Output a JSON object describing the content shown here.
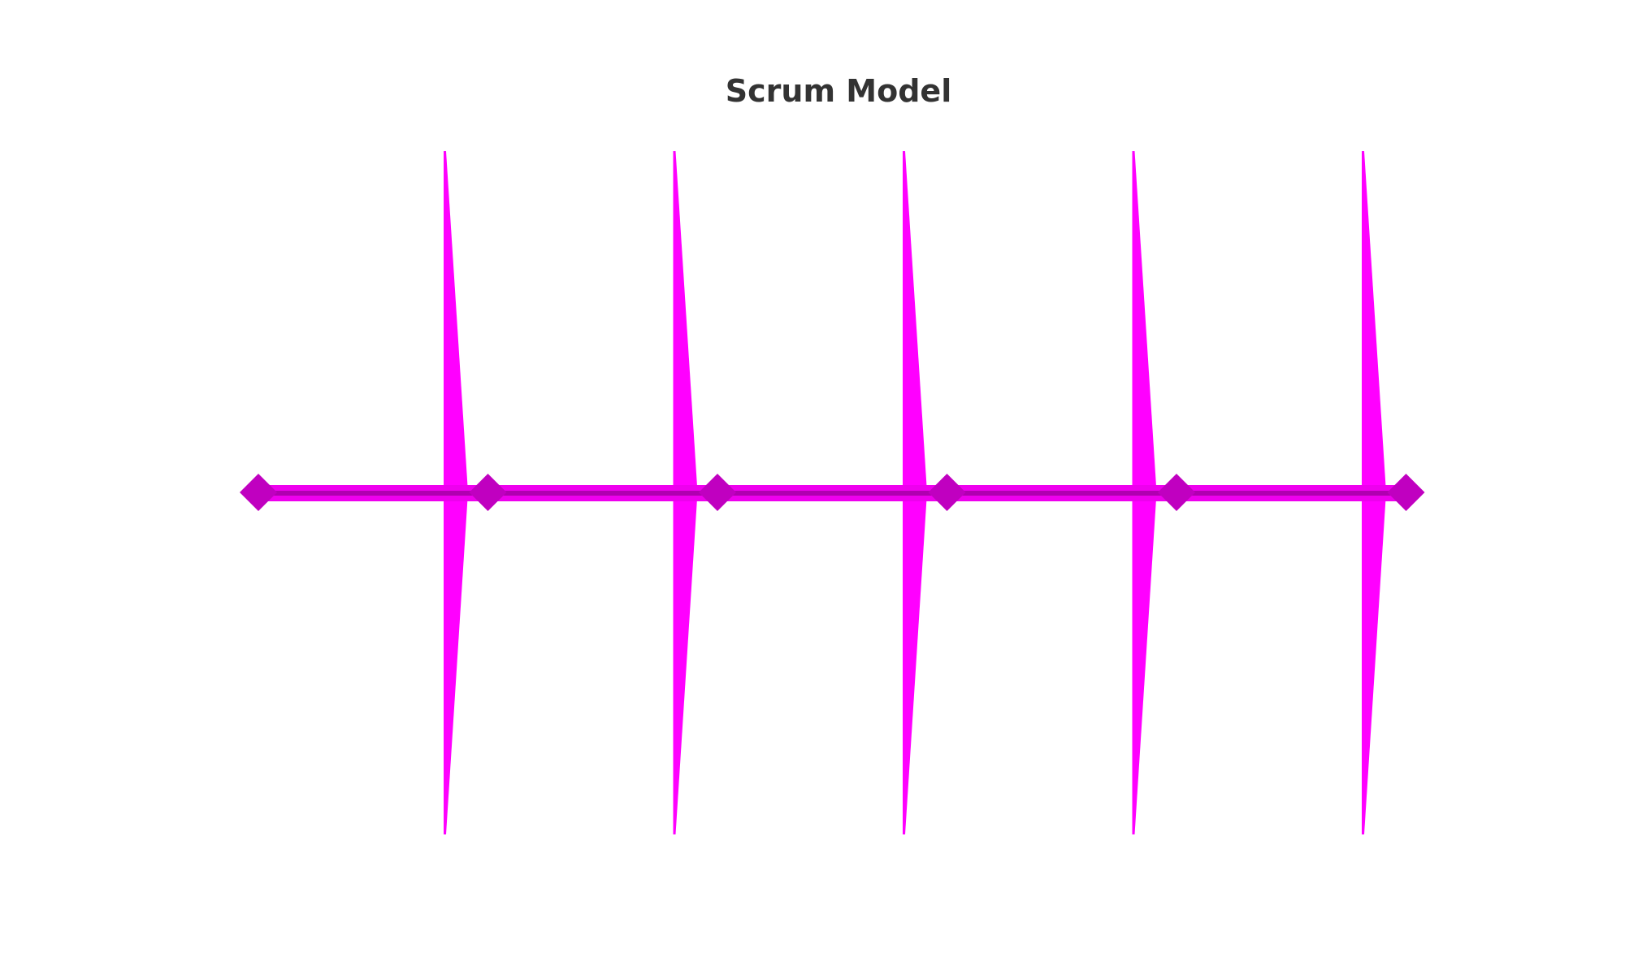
{
  "title": "Scrum Model",
  "diagram": {
    "type": "sprint-timeline",
    "sprint_count": 5,
    "milestone_count": 6,
    "colors": {
      "sprint_spike": "#ff00ff",
      "timeline_bar": "#ee00ee",
      "timeline_center": "#b000b0",
      "milestone_diamond": "#c000c0",
      "title_text": "#333333"
    }
  }
}
